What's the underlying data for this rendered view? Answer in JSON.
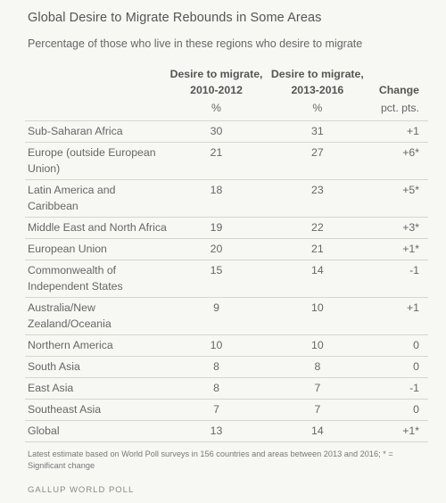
{
  "title": "Global Desire to Migrate Rebounds in Some Areas",
  "subtitle": "Percentage of those who live in these regions who desire to migrate",
  "footnote": "Latest estimate based on World Poll surveys in 156 countries and areas between 2013 and 2016; * = Significant change",
  "source": "GALLUP WORLD POLL",
  "chart_data": {
    "type": "table",
    "columns": [
      {
        "label_line1": "Desire to migrate,",
        "label_line2": "2010-2012",
        "unit": "%"
      },
      {
        "label_line1": "Desire to migrate,",
        "label_line2": "2013-2016",
        "unit": "%"
      },
      {
        "label_line1": "Change",
        "label_line2": "",
        "unit": "pct. pts."
      }
    ],
    "rows": [
      {
        "region": "Sub-Saharan Africa",
        "a": "30",
        "b": "31",
        "change": "+1"
      },
      {
        "region": "Europe (outside European Union)",
        "a": "21",
        "b": "27",
        "change": "+6*"
      },
      {
        "region": "Latin America and Caribbean",
        "a": "18",
        "b": "23",
        "change": "+5*"
      },
      {
        "region": "Middle East and North Africa",
        "a": "19",
        "b": "22",
        "change": "+3*"
      },
      {
        "region": "European Union",
        "a": "20",
        "b": "21",
        "change": "+1*"
      },
      {
        "region": "Commonwealth of Independent States",
        "a": "15",
        "b": "14",
        "change": "-1"
      },
      {
        "region": "Australia/New Zealand/Oceania",
        "a": "9",
        "b": "10",
        "change": "+1"
      },
      {
        "region": "Northern America",
        "a": "10",
        "b": "10",
        "change": "0"
      },
      {
        "region": "South Asia",
        "a": "8",
        "b": "8",
        "change": "0"
      },
      {
        "region": "East Asia",
        "a": "8",
        "b": "7",
        "change": "-1"
      },
      {
        "region": "Southeast Asia",
        "a": "7",
        "b": "7",
        "change": "0"
      },
      {
        "region": "Global",
        "a": "13",
        "b": "14",
        "change": "+1*"
      }
    ]
  }
}
